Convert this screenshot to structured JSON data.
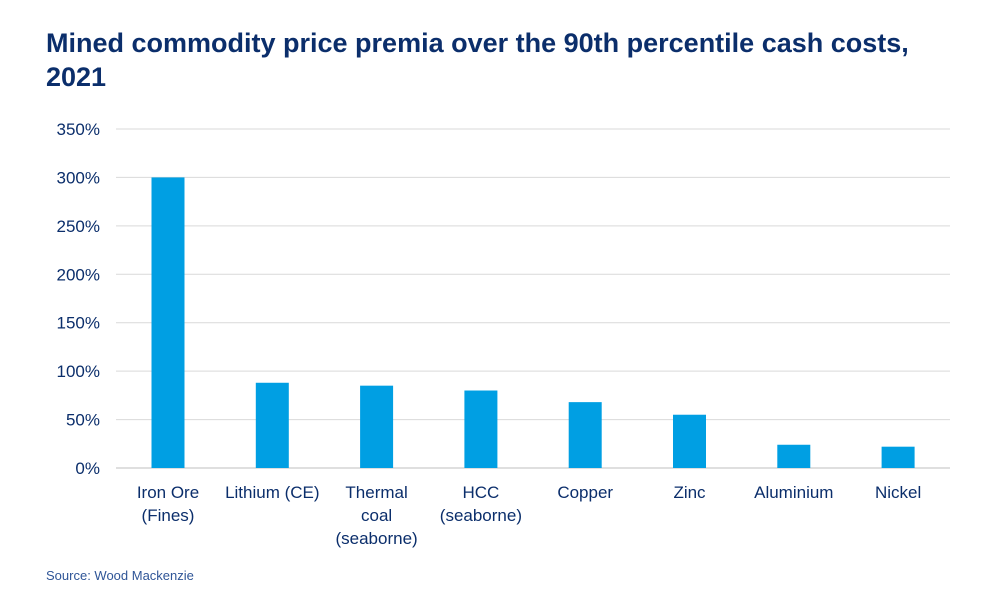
{
  "chart_data": {
    "type": "bar",
    "title": "Mined commodity price premia over the 90th percentile cash costs, 2021",
    "categories": [
      "Iron Ore (Fines)",
      "Lithium (CE)",
      "Thermal coal (seaborne)",
      "HCC (seaborne)",
      "Copper",
      "Zinc",
      "Aluminium",
      "Nickel"
    ],
    "values": [
      300,
      88,
      85,
      80,
      68,
      55,
      24,
      22
    ],
    "value_unit": "%",
    "ylim": [
      0,
      350
    ],
    "yticks": [
      0,
      50,
      100,
      150,
      200,
      250,
      300,
      350
    ],
    "ytick_labels": [
      "0%",
      "50%",
      "100%",
      "150%",
      "200%",
      "250%",
      "300%",
      "350%"
    ],
    "xlabel": "",
    "ylabel": "",
    "grid": true,
    "legend": "none",
    "bar_color": "#009fe3",
    "source": "Source: Wood Mackenzie"
  },
  "colors": {
    "title": "#0b2e6b",
    "grid": "#d9d9d9",
    "source": "#2f5597"
  }
}
